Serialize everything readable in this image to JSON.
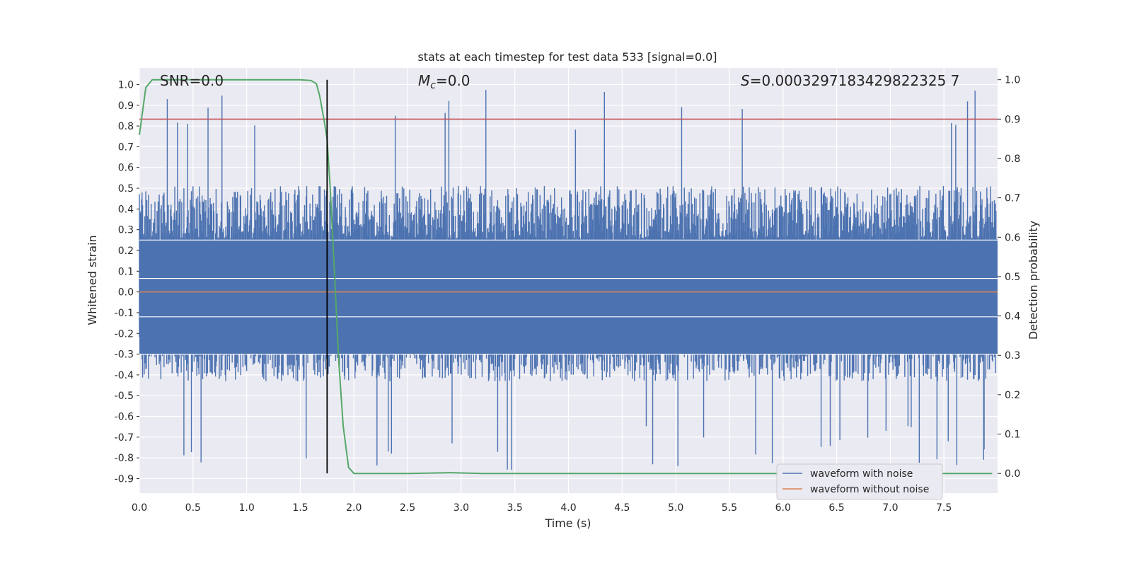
{
  "chart_data": {
    "type": "line",
    "title": "stats at each timestep for test data 533 [signal=0.0]",
    "xlabel": "Time (s)",
    "ylabel": "Whitened strain",
    "y2label": "Detection probability",
    "xlim": [
      0.0,
      8.0
    ],
    "ylim": [
      -0.97,
      1.08
    ],
    "y2lim": [
      -0.05,
      1.03
    ],
    "xticks": [
      "0.0",
      "0.5",
      "1.0",
      "1.5",
      "2.0",
      "2.5",
      "3.0",
      "3.5",
      "4.0",
      "4.5",
      "5.0",
      "5.5",
      "6.0",
      "6.5",
      "7.0",
      "7.5"
    ],
    "yticks": [
      "1.0",
      "0.9",
      "0.8",
      "0.7",
      "0.6",
      "0.5",
      "0.4",
      "0.3",
      "0.2",
      "0.1",
      "0.0",
      "-0.1",
      "-0.2",
      "-0.3",
      "-0.4",
      "-0.5",
      "-0.6",
      "-0.7",
      "-0.8",
      "-0.9"
    ],
    "y2ticks": [
      "1.0",
      "0.9",
      "0.8",
      "0.7",
      "0.6",
      "0.5",
      "0.4",
      "0.3",
      "0.2",
      "0.1",
      "0.0"
    ],
    "grid": true,
    "legend_position": "lower-right",
    "annotations": {
      "snr": "SNR=0.0",
      "mc_symbol": "M",
      "mc_sub": "c",
      "mc_value": "=0.0",
      "s_symbol": "S",
      "s_value": "=0.0003297183429822325 7"
    },
    "colors": {
      "noise": "#4c72b0",
      "clean": "#dd8452",
      "probability": "#55a868",
      "threshold": "#c44e52",
      "marker": "#000000",
      "background": "#eaeaf2"
    },
    "series": [
      {
        "name": "waveform with noise",
        "type": "noise",
        "x_range": [
          0.0,
          8.0
        ],
        "sample_count": 1600,
        "upper_typical": 0.45,
        "lower_typical": -0.38,
        "upper_peak": 1.0,
        "lower_peak": -0.86
      },
      {
        "name": "waveform without noise",
        "x": [
          0.0,
          8.0
        ],
        "values": [
          0.0,
          0.0
        ]
      },
      {
        "name": "detection probability",
        "axis": "right",
        "x": [
          0.0,
          0.06,
          0.12,
          0.25,
          0.5,
          1.0,
          1.5,
          1.6,
          1.65,
          1.68,
          1.72,
          1.75,
          1.78,
          1.82,
          1.86,
          1.9,
          1.95,
          2.0,
          2.1,
          2.5,
          2.9,
          3.2,
          4.0,
          5.0,
          6.0,
          7.0,
          7.95
        ],
        "values": [
          0.86,
          0.98,
          1.0,
          1.0,
          1.0,
          1.0,
          1.0,
          0.998,
          0.99,
          0.96,
          0.9,
          0.85,
          0.72,
          0.5,
          0.28,
          0.12,
          0.015,
          0.0,
          0.0,
          0.0,
          0.002,
          0.0,
          0.0,
          0.0,
          0.0,
          0.0,
          0.0
        ]
      }
    ],
    "threshold_y2": 0.9,
    "vertical_marker_x": 1.75
  }
}
